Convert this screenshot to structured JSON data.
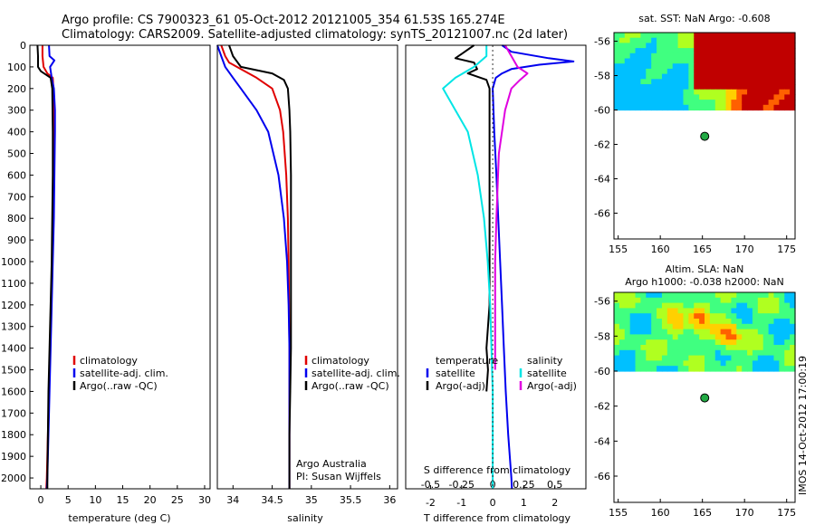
{
  "header": {
    "line1": "Argo profile: CS 7900323_61 05-Oct-2012 20121005_354 61.53S 165.274E",
    "line2": "Climatology: CARS2009. Satellite-adjusted climatology: synTS_20121007.nc (2d later)"
  },
  "side_stamp": "IMOS 14-Oct-2012 17:00:19",
  "colors": {
    "climatology": "#e00000",
    "satellite": "#0000ee",
    "argo": "#000000",
    "s_satellite": "#00e5e5",
    "s_argo": "#e000e0",
    "float_marker": "#22aa44"
  },
  "chart_data": [
    {
      "id": "temperature",
      "type": "line",
      "xlabel": "temperature (deg C)",
      "ylabel": "",
      "xlim": [
        -2,
        31
      ],
      "ylim": [
        2050,
        0
      ],
      "xticks": [
        0,
        5,
        10,
        15,
        20,
        25,
        30
      ],
      "yticks": [
        0,
        100,
        200,
        300,
        400,
        500,
        600,
        700,
        800,
        900,
        1000,
        1100,
        1200,
        1300,
        1400,
        1500,
        1600,
        1700,
        1800,
        1900,
        2000
      ],
      "legend": [
        "climatology",
        "satellite-adj. clim.",
        "Argo(..raw -QC)"
      ],
      "series": [
        {
          "name": "climatology",
          "color": "#e00000",
          "y": [
            0,
            50,
            100,
            130,
            150,
            200,
            400,
            600,
            800,
            1000,
            1200,
            1400,
            1600,
            1800,
            2000,
            2050
          ],
          "x": [
            0.3,
            0.3,
            0.5,
            1.2,
            2.2,
            2.3,
            2.3,
            2.3,
            2.2,
            2.1,
            1.9,
            1.7,
            1.5,
            1.3,
            1.1,
            1.0
          ]
        },
        {
          "name": "satellite-adj. clim.",
          "color": "#0000ee",
          "y": [
            0,
            50,
            70,
            100,
            150,
            200,
            300,
            400,
            600,
            800,
            1000,
            1200,
            1400,
            1600,
            1800,
            2000,
            2050
          ],
          "x": [
            1.5,
            1.6,
            2.5,
            1.7,
            2.0,
            2.4,
            2.6,
            2.6,
            2.5,
            2.4,
            2.2,
            2.0,
            1.8,
            1.6,
            1.4,
            1.2,
            1.1
          ]
        },
        {
          "name": "Argo(..raw -QC)",
          "color": "#000000",
          "y": [
            0,
            50,
            100,
            120,
            150,
            200,
            400,
            600,
            800,
            1000,
            1200,
            1400,
            1500,
            1600,
            1800,
            2000,
            2050
          ],
          "x": [
            -0.6,
            -0.5,
            -0.5,
            0.0,
            1.8,
            2.1,
            2.2,
            2.2,
            2.1,
            2.0,
            1.8,
            1.6,
            1.5,
            1.4,
            1.3,
            1.2,
            1.2
          ]
        }
      ]
    },
    {
      "id": "salinity",
      "type": "line",
      "xlabel": "salinity",
      "ylabel": "",
      "xlim": [
        33.8,
        36.1
      ],
      "ylim": [
        2050,
        0
      ],
      "xticks": [
        34,
        34.5,
        35,
        35.5,
        36
      ],
      "legend": [
        "climatology",
        "satellite-adj. clim.",
        "Argo(..raw -QC)"
      ],
      "annotation": [
        "Argo Australia",
        "PI: Susan Wijffels"
      ],
      "series": [
        {
          "name": "climatology",
          "color": "#e00000",
          "y": [
            0,
            50,
            80,
            100,
            150,
            200,
            300,
            400,
            600,
            800,
            1000,
            1400,
            1800,
            2050
          ],
          "x": [
            33.85,
            33.9,
            33.95,
            34.05,
            34.3,
            34.5,
            34.6,
            34.64,
            34.68,
            34.7,
            34.71,
            34.72,
            34.72,
            34.72
          ]
        },
        {
          "name": "satellite-adj. clim.",
          "color": "#0000ee",
          "y": [
            0,
            50,
            100,
            150,
            200,
            300,
            400,
            600,
            800,
            1000,
            1200,
            1400,
            1600,
            1800,
            2050
          ],
          "x": [
            33.8,
            33.85,
            33.9,
            34.0,
            34.1,
            34.3,
            34.45,
            34.58,
            34.65,
            34.69,
            34.71,
            34.72,
            34.72,
            34.72,
            34.72
          ]
        },
        {
          "name": "Argo(..raw -QC)",
          "color": "#000000",
          "y": [
            0,
            50,
            100,
            130,
            160,
            200,
            300,
            400,
            600,
            800,
            1000,
            1200,
            1400,
            1600,
            1800,
            2050
          ],
          "x": [
            33.95,
            34.0,
            34.1,
            34.5,
            34.65,
            34.7,
            34.72,
            34.73,
            34.74,
            34.74,
            34.74,
            34.74,
            34.74,
            34.73,
            34.72,
            34.72
          ]
        }
      ]
    },
    {
      "id": "differences",
      "type": "line",
      "xlabel": "T difference from climatology",
      "xlabel_top": "S difference from climatology",
      "xlim": [
        -2.8,
        3.0
      ],
      "xticks": [
        -2,
        -1,
        0,
        1,
        2
      ],
      "slim": [
        -0.7,
        0.75
      ],
      "sticks": [
        -0.5,
        -0.25,
        0,
        0.25,
        0.5
      ],
      "sticklabels": [
        "-0.5",
        "-0.25",
        "0",
        "0.25",
        "0.5"
      ],
      "ylim": [
        2050,
        0
      ],
      "legend_temperature": {
        "title": "temperature",
        "items": [
          "satellite",
          "Argo(-adj)"
        ]
      },
      "legend_salinity": {
        "title": "salinity",
        "items": [
          "satellite",
          "Argo(-adj)"
        ]
      },
      "series": [
        {
          "name": "satellite",
          "group": "temperature",
          "axis": "T",
          "color": "#0000ee",
          "y": [
            0,
            30,
            60,
            75,
            90,
            110,
            130,
            150,
            200,
            400,
            600,
            800,
            1000,
            1200,
            1400,
            1600,
            1800,
            2000,
            2050
          ],
          "x": [
            0.3,
            0.6,
            1.8,
            2.6,
            1.5,
            0.6,
            0.3,
            0.1,
            0.0,
            0.05,
            0.12,
            0.18,
            0.24,
            0.3,
            0.36,
            0.42,
            0.5,
            0.6,
            0.62
          ]
        },
        {
          "name": "Argo(-adj)",
          "group": "temperature",
          "axis": "T",
          "color": "#000000",
          "y": [
            0,
            30,
            60,
            80,
            110,
            130,
            160,
            200,
            400,
            600,
            800,
            1000,
            1200,
            1400,
            1500,
            1600
          ],
          "x": [
            -0.6,
            -0.9,
            -1.2,
            -0.6,
            -0.5,
            -0.8,
            -0.2,
            -0.1,
            -0.1,
            -0.1,
            -0.1,
            -0.1,
            -0.1,
            -0.2,
            -0.15,
            -0.2
          ]
        },
        {
          "name": "satellite",
          "group": "salinity",
          "axis": "S",
          "color": "#00e5e5",
          "y": [
            0,
            50,
            100,
            150,
            200,
            300,
            400,
            600,
            800,
            1000,
            1200,
            1400,
            1600,
            1800,
            2050
          ],
          "x": [
            -0.05,
            -0.05,
            -0.15,
            -0.3,
            -0.4,
            -0.3,
            -0.2,
            -0.12,
            -0.07,
            -0.04,
            -0.02,
            -0.01,
            0.0,
            0.0,
            0.0
          ]
        },
        {
          "name": "Argo(-adj)",
          "group": "salinity",
          "axis": "S",
          "color": "#e000e0",
          "y": [
            0,
            50,
            100,
            130,
            160,
            200,
            300,
            500,
            800,
            1000,
            1200,
            1400,
            1500
          ],
          "x": [
            0.1,
            0.15,
            0.2,
            0.28,
            0.22,
            0.15,
            0.1,
            0.05,
            0.03,
            0.02,
            0.02,
            0.02,
            0.02
          ]
        }
      ]
    },
    {
      "id": "sst-map",
      "type": "heatmap",
      "title": "sat. SST: NaN Argo: -0.608",
      "xlim": [
        154.5,
        176
      ],
      "ylim": [
        -67.5,
        -55.5
      ],
      "xticks": [
        155,
        160,
        165,
        170,
        175
      ],
      "yticks": [
        -56,
        -58,
        -60,
        -62,
        -64,
        -66
      ],
      "field_extent": {
        "lon": [
          154.5,
          176
        ],
        "lat": [
          -60,
          -55.5
        ]
      },
      "palette": "#0000b0 #0050ff #00c0ff #40ff80 #b0ff20 #ffd000 #ff6000 #c00000",
      "float_location": {
        "lon": 165.274,
        "lat": -61.53
      }
    },
    {
      "id": "sla-map",
      "type": "heatmap",
      "title": [
        "Altim. SLA: NaN",
        "Argo h1000: -0.038 h2000: NaN"
      ],
      "xlim": [
        154.5,
        176
      ],
      "ylim": [
        -67.5,
        -55.5
      ],
      "xticks": [
        155,
        160,
        165,
        170,
        175
      ],
      "yticks": [
        -56,
        -58,
        -60,
        -62,
        -64,
        -66
      ],
      "field_extent": {
        "lon": [
          154.5,
          176
        ],
        "lat": [
          -60,
          -55.5
        ]
      },
      "palette": "#0000b0 #0050ff #00c0ff #40ff80 #b0ff20 #ffd000 #ff6000 #c00000",
      "float_location": {
        "lon": 165.274,
        "lat": -61.53
      }
    }
  ]
}
